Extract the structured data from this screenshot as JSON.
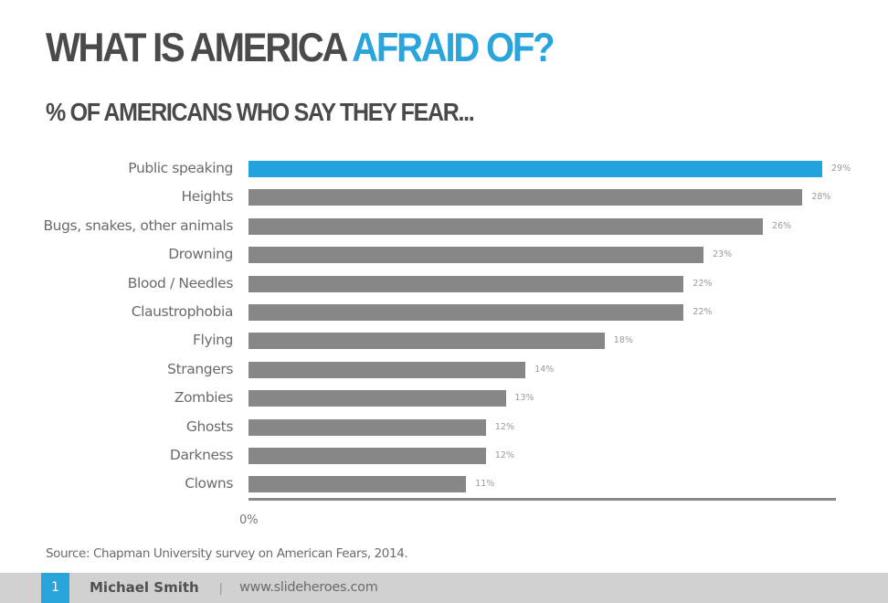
{
  "header": {
    "title_main": "WHAT IS AMERICA",
    "title_accent": "AFRAID OF?",
    "subtitle": "% OF AMERICANS WHO SAY THEY FEAR..."
  },
  "colors": {
    "accent": "#2aa5dc",
    "bar": "#878787",
    "text": "#4a4a4a",
    "footer_bg": "#d1d1d1"
  },
  "chart_data": {
    "type": "bar",
    "orientation": "horizontal",
    "title": "WHAT IS AMERICA AFRAID OF?",
    "subtitle": "% OF AMERICANS WHO SAY THEY FEAR...",
    "categories": [
      "Public speaking",
      "Heights",
      "Bugs, snakes, other animals",
      "Drowning",
      "Blood / Needles",
      "Claustrophobia",
      "Flying",
      "Strangers",
      "Zombies",
      "Ghosts",
      "Darkness",
      "Clowns"
    ],
    "values": [
      29,
      28,
      26,
      23,
      22,
      22,
      18,
      14,
      13,
      12,
      12,
      11
    ],
    "value_labels": [
      "29%",
      "28%",
      "26%",
      "23%",
      "22%",
      "22%",
      "18%",
      "14%",
      "13%",
      "12%",
      "12%",
      "11%"
    ],
    "highlighted": "Public speaking",
    "xlabel": "",
    "ylabel": "",
    "x_tick_labels": [
      "0%"
    ],
    "xlim": [
      0,
      29
    ],
    "grid": false,
    "legend": null
  },
  "axis": {
    "zero_label": "0%"
  },
  "source": "Source: Chapman University survey on American Fears, 2014.",
  "footer": {
    "page_number": "1",
    "author": "Michael Smith",
    "separator": "|",
    "website": "www.slideheroes.com"
  }
}
